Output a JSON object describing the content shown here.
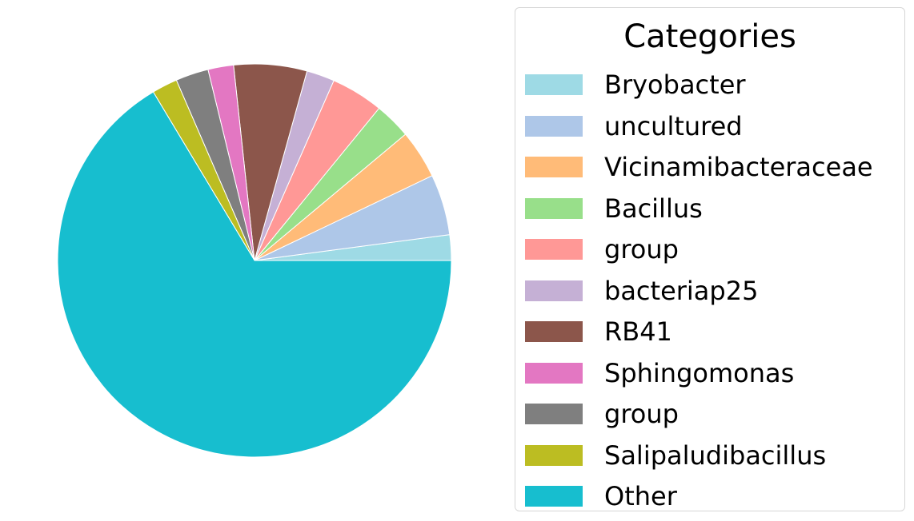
{
  "chart_data": {
    "type": "pie",
    "legend_title": "Categories",
    "legend_position": "right",
    "start_angle_deg": 0,
    "direction": "counterclockwise",
    "slices": [
      {
        "label": "Bryobacter",
        "value": 2.1,
        "color": "#9edae5"
      },
      {
        "label": "uncultured",
        "value": 5.0,
        "color": "#aec7e8"
      },
      {
        "label": "Vicinamibacteraceae",
        "value": 4.0,
        "color": "#ffbb78"
      },
      {
        "label": "Bacillus",
        "value": 3.0,
        "color": "#98df8a"
      },
      {
        "label": "group",
        "value": 4.3,
        "color": "#ff9896"
      },
      {
        "label": "bacteriap25",
        "value": 2.3,
        "color": "#c5b0d5"
      },
      {
        "label": "RB41",
        "value": 6.0,
        "color": "#8c564b"
      },
      {
        "label": "Sphingomonas",
        "value": 2.1,
        "color": "#e377c2"
      },
      {
        "label": "group",
        "value": 2.7,
        "color": "#7f7f7f"
      },
      {
        "label": "Salipaludibacillus",
        "value": 2.1,
        "color": "#bcbd22"
      },
      {
        "label": "Other",
        "value": 66.4,
        "color": "#17becf"
      }
    ]
  }
}
